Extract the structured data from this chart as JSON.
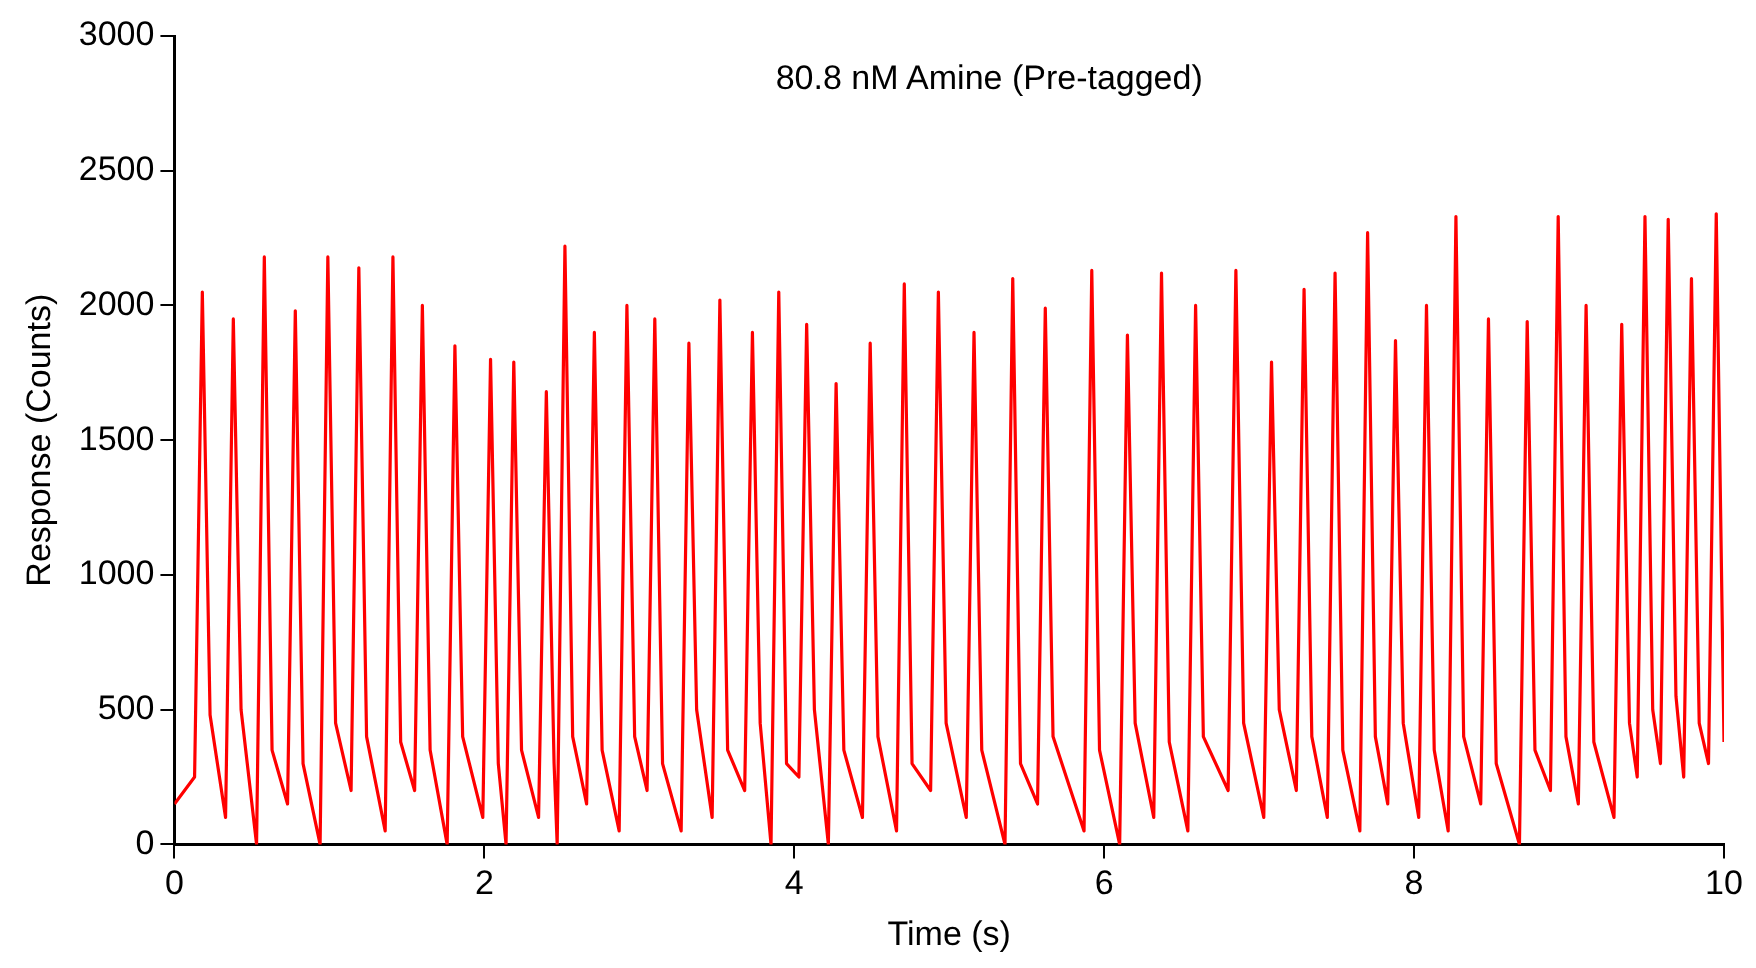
{
  "chart_data": {
    "type": "line",
    "title": "80.8 nM Amine (Pre-tagged)",
    "xlabel": "Time (s)",
    "ylabel": "Response (Counts)",
    "xlim": [
      0,
      10
    ],
    "xticks": [
      0,
      2,
      4,
      6,
      8,
      10
    ],
    "ylim": [
      0,
      3000
    ],
    "yticks": [
      0,
      500,
      1000,
      1500,
      2000,
      2500,
      3000
    ],
    "grid": false,
    "legend": false,
    "marker": "none",
    "line_style": "solid",
    "series": [
      {
        "color": "#ff0000",
        "x": [
          0,
          0.13,
          0.18,
          0.23,
          0.33,
          0.38,
          0.43,
          0.53,
          0.58,
          0.63,
          0.73,
          0.78,
          0.83,
          0.94,
          0.99,
          1.04,
          1.14,
          1.19,
          1.24,
          1.36,
          1.41,
          1.46,
          1.55,
          1.6,
          1.65,
          1.76,
          1.81,
          1.86,
          1.99,
          2.04,
          2.09,
          2.14,
          2.19,
          2.24,
          2.35,
          2.4,
          2.45,
          2.47,
          2.52,
          2.57,
          2.66,
          2.71,
          2.76,
          2.87,
          2.92,
          2.97,
          3.05,
          3.1,
          3.15,
          3.27,
          3.32,
          3.37,
          3.47,
          3.52,
          3.57,
          3.68,
          3.73,
          3.78,
          3.85,
          3.9,
          3.95,
          4.03,
          4.08,
          4.13,
          4.22,
          4.27,
          4.32,
          4.44,
          4.49,
          4.54,
          4.66,
          4.71,
          4.76,
          4.88,
          4.93,
          4.98,
          5.11,
          5.16,
          5.21,
          5.36,
          5.41,
          5.46,
          5.57,
          5.62,
          5.67,
          5.87,
          5.92,
          5.97,
          6.1,
          6.15,
          6.2,
          6.32,
          6.37,
          6.42,
          6.54,
          6.59,
          6.64,
          6.8,
          6.85,
          6.9,
          7.03,
          7.08,
          7.13,
          7.24,
          7.29,
          7.34,
          7.44,
          7.49,
          7.54,
          7.65,
          7.7,
          7.75,
          7.83,
          7.88,
          7.93,
          8.03,
          8.08,
          8.13,
          8.22,
          8.27,
          8.32,
          8.43,
          8.48,
          8.53,
          8.68,
          8.73,
          8.78,
          8.88,
          8.93,
          8.98,
          9.06,
          9.11,
          9.16,
          9.29,
          9.34,
          9.39,
          9.44,
          9.49,
          9.54,
          9.59,
          9.64,
          9.69,
          9.74,
          9.79,
          9.84,
          9.9,
          9.95,
          10
        ],
        "values": [
          150,
          250,
          2050,
          480,
          100,
          1950,
          500,
          0,
          2180,
          350,
          150,
          1980,
          300,
          0,
          2180,
          450,
          200,
          2140,
          400,
          50,
          2180,
          380,
          200,
          2000,
          350,
          0,
          1850,
          400,
          100,
          1800,
          300,
          0,
          1790,
          350,
          100,
          1680,
          300,
          0,
          2220,
          400,
          150,
          1900,
          350,
          50,
          2000,
          400,
          200,
          1950,
          300,
          50,
          1860,
          500,
          100,
          2020,
          350,
          200,
          1900,
          450,
          0,
          2050,
          300,
          250,
          1930,
          500,
          0,
          1710,
          350,
          100,
          1860,
          400,
          50,
          2080,
          300,
          200,
          2050,
          450,
          100,
          1900,
          350,
          0,
          2100,
          300,
          150,
          1990,
          400,
          50,
          2130,
          350,
          0,
          1890,
          450,
          100,
          2120,
          380,
          50,
          2000,
          400,
          200,
          2130,
          450,
          100,
          1790,
          500,
          200,
          2060,
          400,
          100,
          2120,
          350,
          50,
          2270,
          400,
          150,
          1870,
          450,
          100,
          2000,
          350,
          50,
          2330,
          400,
          150,
          1950,
          300,
          0,
          1940,
          350,
          200,
          2330,
          400,
          150,
          2000,
          380,
          100,
          1930,
          450,
          250,
          2330,
          500,
          300,
          2320,
          550,
          250,
          2100,
          450,
          300,
          2340,
          380
        ]
      }
    ]
  }
}
